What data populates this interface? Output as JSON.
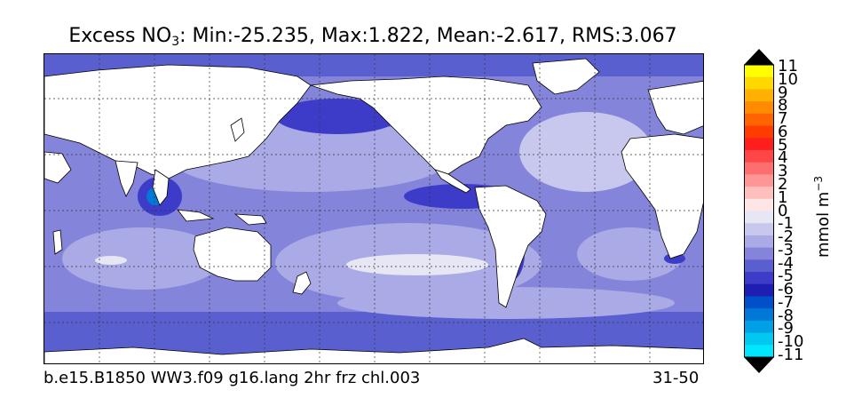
{
  "title": {
    "prefix": "Excess NO",
    "subscript": "3",
    "stats": ": Min:-25.235, Max:1.822, Mean:-2.617, RMS:3.067"
  },
  "footer": {
    "run_name": "b.e15.B1850 WW3.f09 g16.lang 2hr frz chl.003",
    "years": "31-50"
  },
  "colorbar": {
    "unit_main": "mmol m",
    "unit_exp": "−3",
    "labels": [
      "11",
      "10",
      "9",
      "8",
      "7",
      "6",
      "5",
      "4",
      "3",
      "2",
      "1",
      "0",
      "-1",
      "-2",
      "-3",
      "-4",
      "-5",
      "-6",
      "-7",
      "-8",
      "-9",
      "-10",
      "-11"
    ],
    "colors": [
      "#ffff00",
      "#ffd800",
      "#ffb000",
      "#ff8c00",
      "#ff6400",
      "#ff3c00",
      "#ff1e1e",
      "#ff4646",
      "#ff6e6e",
      "#ff9696",
      "#ffbebe",
      "#ffe6e6",
      "#e6e6f5",
      "#c8c8ee",
      "#aaaae6",
      "#8484da",
      "#5a5fd0",
      "#3c3cc8",
      "#1e1eb4",
      "#0050c8",
      "#0078d8",
      "#00a0e6",
      "#00c8f0",
      "#00e6ff"
    ],
    "over_color": "#000000",
    "under_color": "#000000"
  },
  "map": {
    "ocean_base": "#8484da",
    "land": "#ffffff"
  }
}
